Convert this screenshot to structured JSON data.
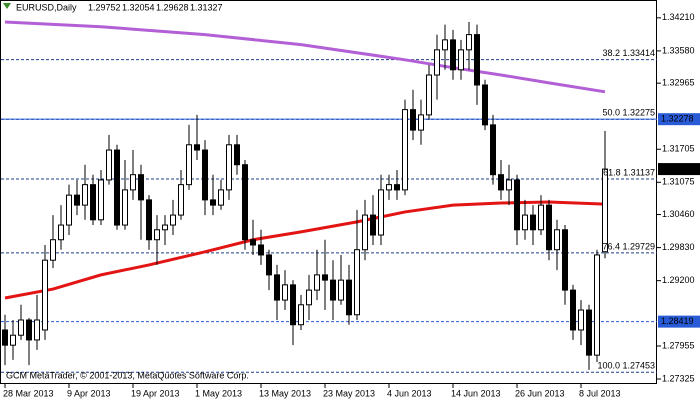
{
  "chart_data": {
    "type": "candlestick",
    "symbol": "EURUSD,Daily",
    "footer": "GCM MetaTrader, © 2001-2013, MetaQuotes Software Corp.",
    "categories": [
      "28 Mar 2013",
      null,
      null,
      null,
      null,
      null,
      null,
      null,
      "9 Apr 2013",
      null,
      null,
      null,
      null,
      null,
      null,
      null,
      "19 Apr 2013",
      null,
      null,
      null,
      null,
      null,
      null,
      null,
      "1 May 2013",
      null,
      null,
      null,
      null,
      null,
      null,
      null,
      "13 May 2013",
      null,
      null,
      null,
      null,
      null,
      null,
      null,
      "23 May 2013",
      null,
      null,
      null,
      null,
      null,
      null,
      null,
      "4 Jun 2013",
      null,
      null,
      null,
      null,
      null,
      null,
      null,
      "14 Jun 2013",
      null,
      null,
      null,
      null,
      null,
      null,
      null,
      "26 Jun 2013",
      null,
      null,
      null,
      null,
      null,
      null,
      null,
      "8 Jul 2013",
      null,
      null,
      null
    ],
    "candles": [
      [
        1.2826,
        1.2855,
        1.2759,
        1.2797
      ],
      [
        1.2797,
        1.2845,
        1.2769,
        1.2816
      ],
      [
        1.2816,
        1.2874,
        1.2807,
        1.2845
      ],
      [
        1.2845,
        1.2849,
        1.2759,
        1.2807
      ],
      [
        1.2807,
        1.2893,
        1.2788,
        1.2845
      ],
      [
        1.2826,
        1.2988,
        1.2807,
        1.2959
      ],
      [
        1.2959,
        1.3045,
        1.2944,
        1.2998
      ],
      [
        1.2998,
        1.3064,
        1.2979,
        1.3026
      ],
      [
        1.3026,
        1.3103,
        1.3007,
        1.3083
      ],
      [
        1.3083,
        1.3112,
        1.3045,
        1.3064
      ],
      [
        1.3064,
        1.3141,
        1.3036,
        1.3103
      ],
      [
        1.3103,
        1.3122,
        1.3026,
        1.3036
      ],
      [
        1.3036,
        1.3131,
        1.3026,
        1.3112
      ],
      [
        1.3112,
        1.3198,
        1.3103,
        1.3169
      ],
      [
        1.3169,
        1.3179,
        1.3017,
        1.3026
      ],
      [
        1.3026,
        1.315,
        1.3017,
        1.3093
      ],
      [
        1.3093,
        1.3169,
        1.3074,
        1.3122
      ],
      [
        1.3122,
        1.3141,
        1.2998,
        1.3074
      ],
      [
        1.3074,
        1.3083,
        1.2979,
        1.2998
      ],
      [
        1.2998,
        1.3045,
        1.295,
        1.3017
      ],
      [
        1.3017,
        1.3045,
        1.2988,
        1.3026
      ],
      [
        1.3026,
        1.3074,
        1.3007,
        1.3045
      ],
      [
        1.3045,
        1.3131,
        1.3036,
        1.3103
      ],
      [
        1.3103,
        1.3217,
        1.3093,
        1.3179
      ],
      [
        1.3179,
        1.3236,
        1.315,
        1.3169
      ],
      [
        1.3169,
        1.3188,
        1.3045,
        1.3074
      ],
      [
        1.3074,
        1.3122,
        1.3045,
        1.3064
      ],
      [
        1.3064,
        1.3112,
        1.3055,
        1.3093
      ],
      [
        1.3093,
        1.3198,
        1.3074,
        1.3179
      ],
      [
        1.3179,
        1.3198,
        1.3122,
        1.3141
      ],
      [
        1.3141,
        1.315,
        1.2979,
        1.2998
      ],
      [
        1.2998,
        1.3036,
        1.2969,
        1.2988
      ],
      [
        1.2988,
        1.3017,
        1.295,
        1.2969
      ],
      [
        1.2969,
        1.2979,
        1.2902,
        1.2931
      ],
      [
        1.2931,
        1.295,
        1.2845,
        1.2883
      ],
      [
        1.2883,
        1.294,
        1.2864,
        1.2912
      ],
      [
        1.2912,
        1.2921,
        1.2797,
        1.2836
      ],
      [
        1.2836,
        1.2893,
        1.2826,
        1.2874
      ],
      [
        1.2874,
        1.2931,
        1.2845,
        1.2902
      ],
      [
        1.2902,
        1.2979,
        1.2883,
        1.2931
      ],
      [
        1.2931,
        1.2998,
        1.2864,
        1.2921
      ],
      [
        1.2921,
        1.2959,
        1.2845,
        1.2883
      ],
      [
        1.2883,
        1.2969,
        1.2874,
        1.2921
      ],
      [
        1.2921,
        1.295,
        1.2836,
        1.2855
      ],
      [
        1.2855,
        1.3055,
        1.2845,
        1.2979
      ],
      [
        1.2979,
        1.3074,
        1.2959,
        1.3045
      ],
      [
        1.3045,
        1.3083,
        1.2988,
        1.3007
      ],
      [
        1.3007,
        1.3122,
        1.2988,
        1.3093
      ],
      [
        1.3093,
        1.3122,
        1.3074,
        1.3103
      ],
      [
        1.3103,
        1.3131,
        1.3074,
        1.3093
      ],
      [
        1.3093,
        1.3265,
        1.3083,
        1.3246
      ],
      [
        1.3246,
        1.3284,
        1.3188,
        1.3207
      ],
      [
        1.3207,
        1.3265,
        1.3179,
        1.3236
      ],
      [
        1.3236,
        1.3331,
        1.3227,
        1.3312
      ],
      [
        1.3312,
        1.3389,
        1.3265,
        1.336
      ],
      [
        1.336,
        1.3408,
        1.3322,
        1.3379
      ],
      [
        1.3379,
        1.3398,
        1.3303,
        1.3322
      ],
      [
        1.3322,
        1.3379,
        1.3303,
        1.336
      ],
      [
        1.336,
        1.3413,
        1.3322,
        1.3389
      ],
      [
        1.3389,
        1.3408,
        1.3255,
        1.3293
      ],
      [
        1.3293,
        1.3303,
        1.3207,
        1.3217
      ],
      [
        1.3217,
        1.3236,
        1.3103,
        1.3122
      ],
      [
        1.3122,
        1.315,
        1.3074,
        1.3093
      ],
      [
        1.3093,
        1.3141,
        1.3064,
        1.3112
      ],
      [
        1.3112,
        1.3122,
        1.2988,
        1.3017
      ],
      [
        1.3017,
        1.3074,
        1.2998,
        1.3045
      ],
      [
        1.3045,
        1.3064,
        1.2988,
        1.3017
      ],
      [
        1.3017,
        1.3083,
        1.3007,
        1.3064
      ],
      [
        1.3064,
        1.3074,
        1.2959,
        1.2979
      ],
      [
        1.2979,
        1.3036,
        1.294,
        1.3017
      ],
      [
        1.3017,
        1.3026,
        1.2874,
        1.2902
      ],
      [
        1.2902,
        1.2912,
        1.2807,
        1.2826
      ],
      [
        1.2826,
        1.2883,
        1.2797,
        1.2864
      ],
      [
        1.2864,
        1.2874,
        1.275,
        1.2778
      ],
      [
        1.2778,
        1.2979,
        1.2765,
        1.2969
      ],
      [
        1.29752,
        1.32054,
        1.29628,
        1.31327
      ]
    ],
    "series": [
      {
        "color": "#b35fd6",
        "x": [
          0,
          12,
          25,
          37,
          50,
          56,
          62,
          68,
          75
        ],
        "values": [
          1.3413,
          1.3404,
          1.3389,
          1.337,
          1.3341,
          1.3326,
          1.3312,
          1.3297,
          1.328
        ]
      },
      {
        "color": "#e31414",
        "x": [
          0,
          6,
          12,
          18,
          25,
          31,
          37,
          44,
          50,
          56,
          62,
          68,
          75
        ],
        "values": [
          1.2887,
          1.2904,
          1.2931,
          1.295,
          1.2975,
          1.2998,
          1.3013,
          1.3032,
          1.3051,
          1.3064,
          1.3068,
          1.307,
          1.3066
        ]
      }
    ],
    "ylim": [
      1.2723,
      1.3455
    ],
    "yticks": [
      {
        "value": 1.3421,
        "label": "1.34210"
      },
      {
        "value": 1.3358,
        "label": "1.33580"
      },
      1.32965,
      1.31705,
      1.31075,
      {
        "value": 1.3046,
        "label": "1.30460"
      },
      {
        "value": 1.2983,
        "label": "1.29830"
      },
      {
        "value": 1.292,
        "label": "1.29200"
      },
      1.27955,
      1.27325
    ],
    "fib_levels": [
      {
        "value": 1.33414,
        "label": "38.2 1.33414"
      },
      {
        "value": 1.32275,
        "label": "50.0 1.32275"
      },
      {
        "value": 1.31137,
        "label": "61.8 1.31137"
      },
      {
        "value": 1.29729,
        "label": "76.4 1.29729"
      },
      {
        "value": 1.27453,
        "label": "100.0 1.27453"
      }
    ],
    "fib_color": "#1f3c88",
    "price_lines": [
      {
        "value": 1.32278,
        "style": "solid"
      },
      {
        "value": 1.28419,
        "style": "dashed"
      }
    ],
    "price_line_color": "#2a5bd7"
  }
}
